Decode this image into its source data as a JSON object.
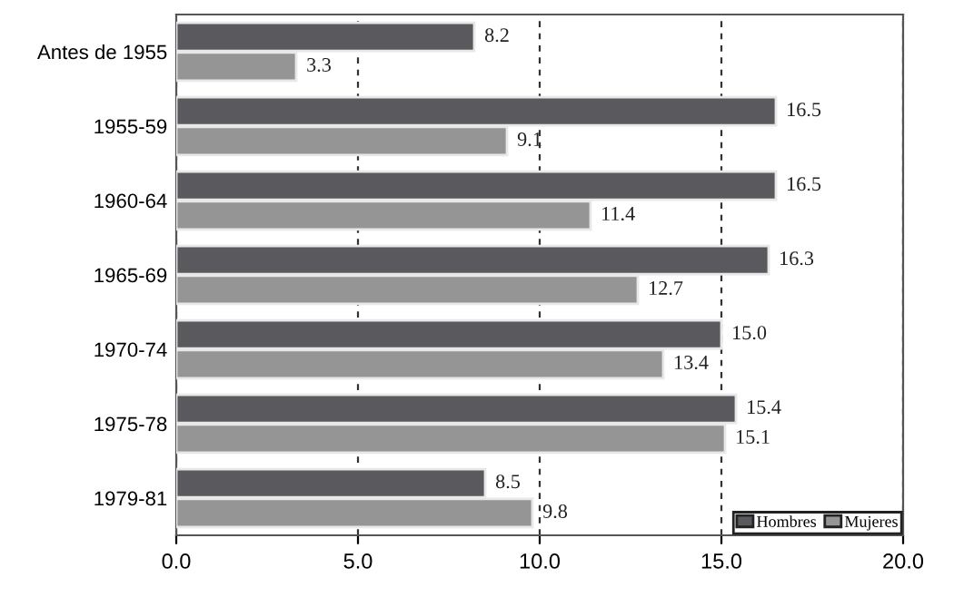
{
  "chart_data": {
    "type": "bar",
    "orientation": "horizontal",
    "categories": [
      "Antes de 1955",
      "1955-59",
      "1960-64",
      "1965-69",
      "1970-74",
      "1975-78",
      "1979-81"
    ],
    "series": [
      {
        "name": "Hombres",
        "color": "#5a5a5e",
        "values": [
          8.2,
          16.5,
          16.5,
          16.3,
          15.0,
          15.4,
          8.5
        ],
        "value_labels": [
          "8.2",
          "16.5",
          "16.5",
          "16.3",
          "15.0",
          "15.4",
          "8.5"
        ]
      },
      {
        "name": "Mujeres",
        "color": "#959595",
        "values": [
          3.3,
          9.1,
          11.4,
          12.7,
          13.4,
          15.1,
          9.8
        ],
        "value_labels": [
          "3.3",
          "9.1",
          "11.4",
          "12.7",
          "13.4",
          "15.1",
          "9.8"
        ]
      }
    ],
    "xlim": [
      0,
      20
    ],
    "xticks": [
      {
        "value": 0,
        "label": "0.0"
      },
      {
        "value": 5,
        "label": "5.0"
      },
      {
        "value": 10,
        "label": "10.0"
      },
      {
        "value": 15,
        "label": "15.0"
      },
      {
        "value": 20,
        "label": "20.0"
      }
    ],
    "grid": "x",
    "legend": "bottom right"
  }
}
